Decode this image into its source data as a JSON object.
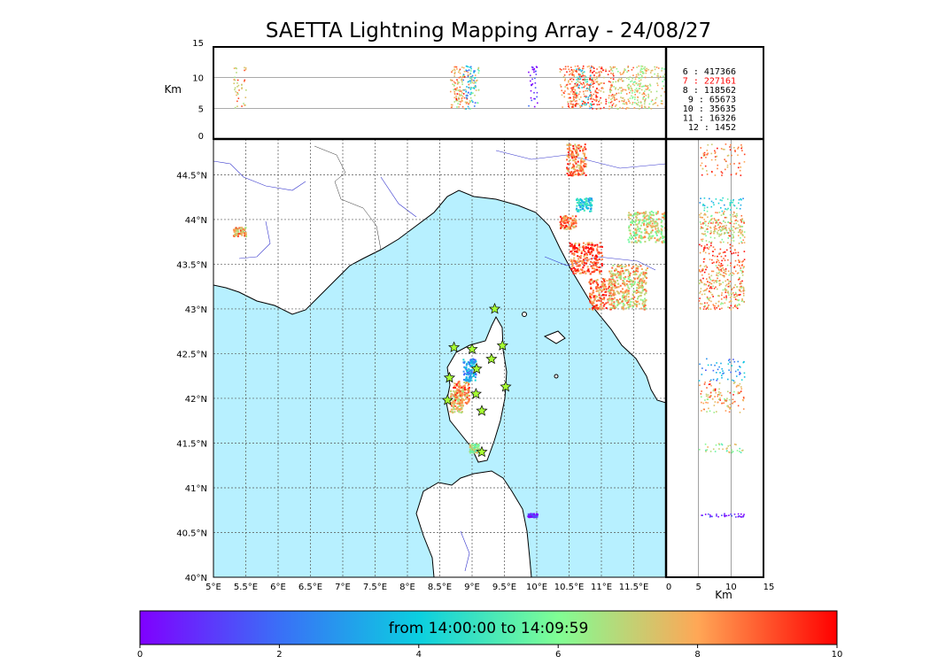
{
  "title": "SAETTA Lightning Mapping Array - 24/08/27",
  "colors": {
    "sea": "#b7f0ff",
    "land": "#ffffff",
    "coast": "#000000",
    "rivers": "#3333cc",
    "borders": "#333333",
    "grid": "#555555",
    "station": "#a6ff33",
    "red_label": "#ff0000"
  },
  "chart_data": {
    "type": "scatter",
    "map": {
      "lon_range": [
        5,
        12
      ],
      "lat_range": [
        40,
        44.9
      ],
      "lon_ticks": [
        "5°E",
        "5.5°E",
        "6°E",
        "6.5°E",
        "7°E",
        "7.5°E",
        "8°E",
        "8.5°E",
        "9°E",
        "9.5°E",
        "10°E",
        "10.5°E",
        "11°E",
        "11.5°E"
      ],
      "lat_ticks": [
        "40°N",
        "40.5°N",
        "41°N",
        "41.5°N",
        "42°N",
        "42.5°N",
        "43°N",
        "43.5°N",
        "44°N",
        "44.5°N"
      ],
      "grid": true
    },
    "altitude_lon_panel": {
      "ylabel": "Km",
      "y_ticks": [
        "0",
        "5",
        "10",
        "15"
      ],
      "y_range": [
        0,
        15
      ]
    },
    "altitude_lat_panel": {
      "xlabel": "Km",
      "x_ticks": [
        "0",
        "5",
        "10",
        "15"
      ],
      "x_range": [
        0,
        15
      ]
    },
    "legend": {
      "placement": "top-right",
      "rows": [
        {
          "label": "6  :  417366",
          "highlight": false
        },
        {
          "label": "7  :  227161",
          "highlight": true
        },
        {
          "label": "8  :  118562",
          "highlight": false
        },
        {
          "label": "9  :    65673",
          "highlight": false
        },
        {
          "label": "10 :    35635",
          "highlight": false
        },
        {
          "label": "11 :    16326",
          "highlight": false
        },
        {
          "label": "12 :     1452",
          "highlight": false
        }
      ]
    },
    "colorbar": {
      "label": "from 14:00:00 to 14:09:59",
      "ticks": [
        "0",
        "2",
        "4",
        "6",
        "8",
        "10"
      ],
      "range": [
        0,
        10
      ],
      "colormap": "rainbow"
    },
    "stations": [
      {
        "lon": 9.35,
        "lat": 43.0
      },
      {
        "lon": 8.72,
        "lat": 42.57
      },
      {
        "lon": 9.0,
        "lat": 42.55
      },
      {
        "lon": 9.47,
        "lat": 42.59
      },
      {
        "lon": 9.3,
        "lat": 42.44
      },
      {
        "lon": 9.07,
        "lat": 42.33
      },
      {
        "lon": 8.65,
        "lat": 42.23
      },
      {
        "lon": 9.52,
        "lat": 42.13
      },
      {
        "lon": 9.06,
        "lat": 42.05
      },
      {
        "lon": 8.62,
        "lat": 41.98
      },
      {
        "lon": 9.15,
        "lat": 41.86
      },
      {
        "lon": 9.15,
        "lat": 41.4
      }
    ],
    "lightning_clusters": [
      {
        "lon": [
          8.65,
          8.85
        ],
        "lat": [
          41.85,
          42.1
        ],
        "time": 7.5
      },
      {
        "lon": [
          8.7,
          8.95
        ],
        "lat": [
          41.95,
          42.2
        ],
        "time": 8.5
      },
      {
        "lon": [
          8.85,
          9.05
        ],
        "lat": [
          42.2,
          42.45
        ],
        "time": 3
      },
      {
        "lon": [
          8.95,
          9.1
        ],
        "lat": [
          41.4,
          41.5
        ],
        "time": 6.5
      },
      {
        "lon": [
          10.35,
          10.6
        ],
        "lat": [
          43.9,
          44.05
        ],
        "time": 8.5
      },
      {
        "lon": [
          10.5,
          11.0
        ],
        "lat": [
          43.4,
          43.75
        ],
        "time": 9
      },
      {
        "lon": [
          10.8,
          11.2
        ],
        "lat": [
          43.0,
          43.35
        ],
        "time": 8.5
      },
      {
        "lon": [
          11.1,
          11.7
        ],
        "lat": [
          43.0,
          43.5
        ],
        "time": 7.5
      },
      {
        "lon": [
          11.4,
          12.0
        ],
        "lat": [
          43.75,
          44.1
        ],
        "time": 7
      },
      {
        "lon": [
          10.45,
          10.75
        ],
        "lat": [
          44.5,
          44.85
        ],
        "time": 8.5
      },
      {
        "lon": [
          10.6,
          10.85
        ],
        "lat": [
          44.1,
          44.25
        ],
        "time": 4
      },
      {
        "lon": [
          5.3,
          5.5
        ],
        "lat": [
          43.82,
          43.92
        ],
        "time": 8
      },
      {
        "lon": [
          9.85,
          10.0
        ],
        "lat": [
          40.68,
          40.72
        ],
        "time": 0.5
      }
    ]
  }
}
